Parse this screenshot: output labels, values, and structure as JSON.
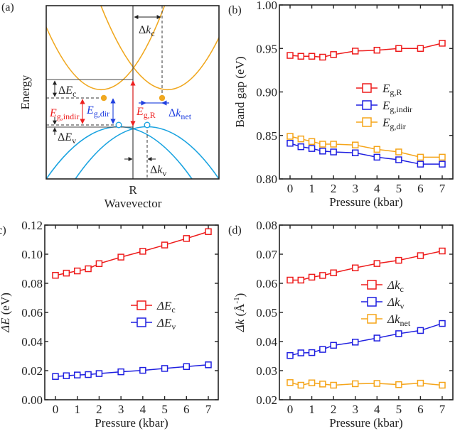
{
  "colors": {
    "red": "#ee1c1c",
    "blue": "#1f1fe0",
    "orange": "#f5a51a",
    "cb_orange": "#f0a820",
    "vb_blue": "#1aa3e0",
    "arrow_red": "#ee3030",
    "arrow_blue": "#3050e0",
    "axis": "#222222"
  },
  "panel_a": {
    "label": "(a)",
    "ylabel": "Energy",
    "xlabel": "Wavevector",
    "x_tick": "R",
    "annotations": {
      "dk_c": {
        "delta": "Δ",
        "main": "k",
        "sub": "c"
      },
      "dE_c": {
        "delta": "Δ",
        "main": "E",
        "sub": "c"
      },
      "dE_v": {
        "delta": "Δ",
        "main": "E",
        "sub": "v"
      },
      "eg_indir": {
        "main": "E",
        "sub": "g,indir"
      },
      "eg_dir": {
        "main": "E",
        "sub": "g,dir"
      },
      "eg_r": {
        "main": "E",
        "sub": "g,R"
      },
      "dk_net": {
        "delta": "Δ",
        "main": "k",
        "sub": "net"
      },
      "dk_v": {
        "delta": "Δ",
        "main": "k",
        "sub": "v"
      }
    }
  },
  "chart_data": [
    {
      "id": "b",
      "panel_label": "(b)",
      "type": "line",
      "xlabel": "Pressure (kbar)",
      "ylabel": "Band gap (eV)",
      "xlim": [
        -0.3,
        7.3
      ],
      "ylim": [
        0.8,
        1.0
      ],
      "xticks": [
        0,
        1,
        2,
        3,
        4,
        5,
        6,
        7
      ],
      "yticks": [
        0.8,
        0.85,
        0.9,
        0.95,
        1.0
      ],
      "ytick_labels": [
        "0.80",
        "0.85",
        "0.90",
        "0.95",
        "1.00"
      ],
      "legend_position": "center-right",
      "x": [
        0,
        0.5,
        1,
        1.5,
        2,
        3,
        4,
        5,
        6,
        7
      ],
      "series": [
        {
          "name": "E_g,R",
          "main": "E",
          "sub": "g,R",
          "color": "#ee1c1c",
          "values": [
            0.942,
            0.941,
            0.941,
            0.94,
            0.943,
            0.947,
            0.948,
            0.95,
            0.95,
            0.956
          ]
        },
        {
          "name": "E_g,indir",
          "main": "E",
          "sub": "g,indir",
          "color": "#1f1fe0",
          "values": [
            0.841,
            0.837,
            0.835,
            0.832,
            0.831,
            0.83,
            0.825,
            0.822,
            0.817,
            0.817
          ]
        },
        {
          "name": "E_g,dir",
          "main": "E",
          "sub": "g,dir",
          "color": "#f5a51a",
          "values": [
            0.849,
            0.846,
            0.843,
            0.84,
            0.84,
            0.839,
            0.834,
            0.831,
            0.825,
            0.825
          ]
        }
      ]
    },
    {
      "id": "c",
      "panel_label": "(c)",
      "type": "line",
      "xlabel": "Pressure (kbar)",
      "ylabel": "ΔE (eV)",
      "ylabel_main": "ΔE",
      "ylabel_unit": " (eV)",
      "xlim": [
        -0.3,
        7.3
      ],
      "ylim": [
        0.0,
        0.12
      ],
      "xticks": [
        0,
        1,
        2,
        3,
        4,
        5,
        6,
        7
      ],
      "yticks": [
        0.0,
        0.02,
        0.04,
        0.06,
        0.08,
        0.1,
        0.12
      ],
      "ytick_labels": [
        "0.00",
        "0.02",
        "0.04",
        "0.06",
        "0.08",
        "0.10",
        "0.12"
      ],
      "legend_position": "center-right",
      "x": [
        0,
        0.5,
        1,
        1.5,
        2,
        3,
        4,
        5,
        6,
        7
      ],
      "series": [
        {
          "name": "ΔE_c",
          "main": "ΔE",
          "sub": "c",
          "color": "#ee1c1c",
          "values": [
            0.0855,
            0.087,
            0.0885,
            0.09,
            0.0935,
            0.098,
            0.102,
            0.1063,
            0.1108,
            0.1155
          ]
        },
        {
          "name": "ΔE_v",
          "main": "ΔE",
          "sub": "v",
          "color": "#1f1fe0",
          "values": [
            0.016,
            0.0165,
            0.017,
            0.0173,
            0.018,
            0.0192,
            0.0202,
            0.0215,
            0.0228,
            0.024
          ]
        }
      ]
    },
    {
      "id": "d",
      "panel_label": "(d)",
      "type": "line",
      "xlabel": "Pressure (kbar)",
      "ylabel": "Δk (Å^-1)",
      "ylabel_main": "Δk",
      "ylabel_unit": " (Å",
      "ylabel_sup": "-1",
      "ylabel_close": ")",
      "xlim": [
        -0.3,
        7.3
      ],
      "ylim": [
        0.02,
        0.08
      ],
      "xticks": [
        0,
        1,
        2,
        3,
        4,
        5,
        6,
        7
      ],
      "yticks": [
        0.02,
        0.03,
        0.04,
        0.05,
        0.06,
        0.07,
        0.08
      ],
      "ytick_labels": [
        "0.02",
        "0.03",
        "0.04",
        "0.05",
        "0.06",
        "0.07",
        "0.08"
      ],
      "legend_position": "center-right",
      "x": [
        0,
        0.5,
        1,
        1.5,
        2,
        3,
        4,
        5,
        6,
        7
      ],
      "series": [
        {
          "name": "Δk_c",
          "main": "Δk",
          "sub": "c",
          "color": "#ee1c1c",
          "values": [
            0.0611,
            0.0611,
            0.0621,
            0.0627,
            0.0636,
            0.0653,
            0.0668,
            0.0679,
            0.0695,
            0.0711
          ]
        },
        {
          "name": "Δk_v",
          "main": "Δk",
          "sub": "v",
          "color": "#1f1fe0",
          "values": [
            0.0352,
            0.0361,
            0.0362,
            0.0373,
            0.0387,
            0.0398,
            0.0412,
            0.0427,
            0.0438,
            0.0462
          ]
        },
        {
          "name": "Δk_net",
          "main": "Δk",
          "sub": "net",
          "color": "#f5a51a",
          "values": [
            0.0259,
            0.025,
            0.0258,
            0.0254,
            0.025,
            0.0255,
            0.0256,
            0.0252,
            0.0257,
            0.025
          ]
        }
      ]
    }
  ]
}
